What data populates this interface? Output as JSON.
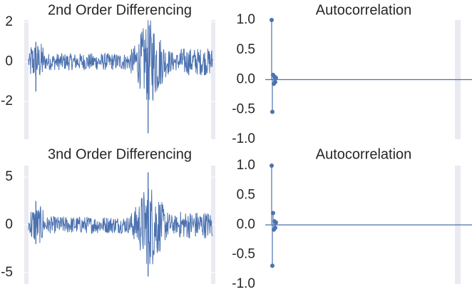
{
  "chart_data": [
    {
      "type": "line",
      "title": "2nd Order Differencing",
      "xlabel": "",
      "ylabel": "",
      "ylim": [
        -3.9,
        2.1
      ],
      "yticks": [
        2,
        0,
        -2
      ],
      "ytick_labels": [
        "2",
        "0",
        "-2"
      ],
      "grid": true,
      "series_color": "#4c72b0",
      "notes": "dense noisy series around 0; spike ~+1 and ~-1.5 near start, burst near middle with peak 1.8 and trough -3.6",
      "spikes": [
        {
          "pos": 0.04,
          "value": 1.0
        },
        {
          "pos": 0.04,
          "value": -1.5
        },
        {
          "pos": 0.65,
          "value": 1.8
        },
        {
          "pos": 0.65,
          "value": -3.6
        }
      ]
    },
    {
      "type": "scatter",
      "title": "Autocorrelation",
      "xlabel": "",
      "ylabel": "",
      "ylim": [
        -1.0,
        1.0
      ],
      "yticks": [
        1.0,
        0.5,
        0.0,
        -0.5,
        -1.0
      ],
      "ytick_labels": [
        "1.0",
        "0.5",
        "0.0",
        "-0.5",
        "-1.0"
      ],
      "lags": [
        0,
        1,
        2,
        3,
        4,
        5,
        6
      ],
      "values": [
        1.0,
        -0.54,
        0.08,
        -0.07,
        0.05,
        -0.04,
        0.03
      ],
      "series_color": "#4c72b0",
      "top_tick_partial": "1.0"
    },
    {
      "type": "line",
      "title": "3nd Order Differencing",
      "xlabel": "",
      "ylabel": "",
      "ylim": [
        -6.2,
        6.2
      ],
      "yticks": [
        5,
        0,
        -5
      ],
      "ytick_labels": [
        "5",
        "0",
        "-5"
      ],
      "grid": true,
      "series_color": "#4c72b0",
      "notes": "dense noisy series around 0; spike ~+2.5 and ~-2 near start, burst near middle with peak 5.5 and trough -5.4",
      "spikes": [
        {
          "pos": 0.04,
          "value": 2.5
        },
        {
          "pos": 0.04,
          "value": -2.0
        },
        {
          "pos": 0.65,
          "value": 5.5
        },
        {
          "pos": 0.65,
          "value": -5.4
        }
      ]
    },
    {
      "type": "scatter",
      "title": "Autocorrelation",
      "xlabel": "",
      "ylabel": "",
      "ylim": [
        -1.0,
        1.0
      ],
      "yticks": [
        1.0,
        0.5,
        0.0,
        -0.5,
        -1.0
      ],
      "ytick_labels": [
        "1.0",
        "0.5",
        "0.0",
        "-0.5",
        "-1.0"
      ],
      "lags": [
        0,
        1,
        2,
        3,
        4,
        5,
        6
      ],
      "values": [
        1.0,
        -0.69,
        0.2,
        -0.08,
        0.06,
        -0.05,
        0.04
      ],
      "series_color": "#4c72b0"
    }
  ]
}
